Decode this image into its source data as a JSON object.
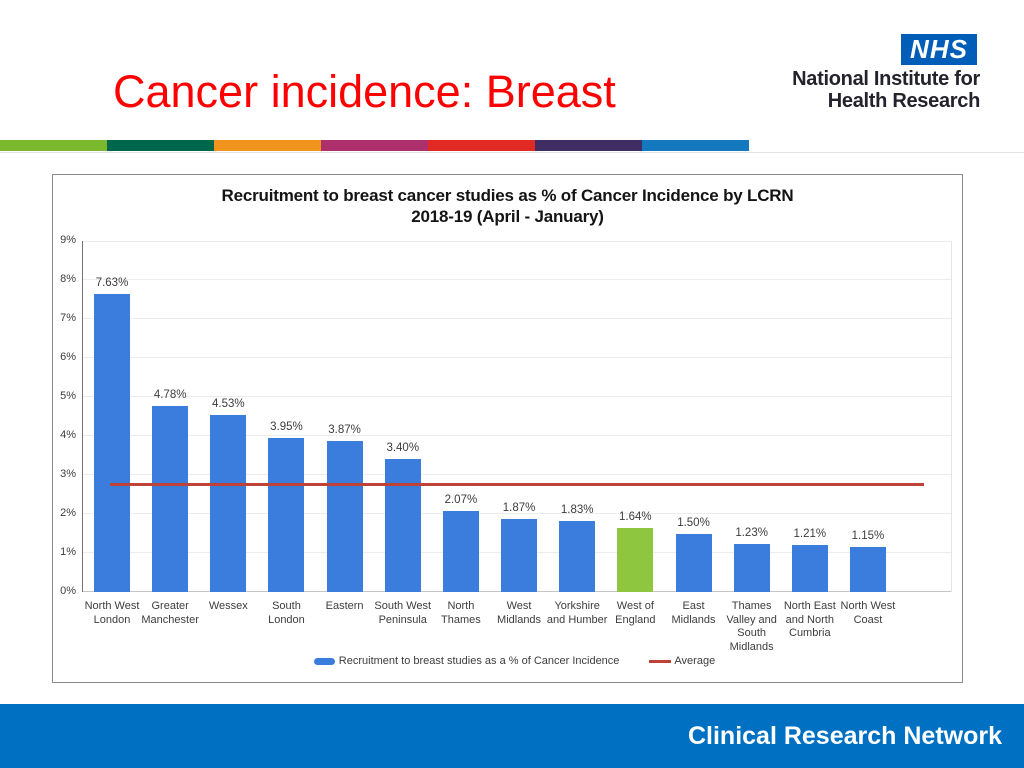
{
  "slide": {
    "title": "Cancer incidence: Breast",
    "title_color": "#fe0000"
  },
  "nhs_logo": {
    "nhs": "NHS",
    "org_line1": "National Institute for",
    "org_line2": "Health Research",
    "nhs_blue": "#005eb8"
  },
  "stripe_colors": [
    "#7cb82e",
    "#00664c",
    "#f0941e",
    "#ad2f6c",
    "#e22a25",
    "#3f2d64",
    "#1478bf"
  ],
  "footer": {
    "label": "Clinical Research Network",
    "bg": "#0071c2"
  },
  "chart_data": {
    "type": "bar",
    "title_line1": "Recruitment to breast cancer studies as % of Cancer Incidence by LCRN",
    "title_line2": "2018-19 (April - January)",
    "categories": [
      "North West London",
      "Greater Manchester",
      "Wessex",
      "South London",
      "Eastern",
      "South West Peninsula",
      "North Thames",
      "West Midlands",
      "Yorkshire and Humber",
      "West of England",
      "East Midlands",
      "Thames Valley and South Midlands",
      "North East and North Cumbria",
      "North West Coast"
    ],
    "categories_wrapped": [
      "North West\nLondon",
      "Greater\nManchester",
      "Wessex",
      "South\nLondon",
      "Eastern",
      "South West\nPeninsula",
      "North\nThames",
      "West\nMidlands",
      "Yorkshire\nand Humber",
      "West of\nEngland",
      "East\nMidlands",
      "Thames\nValley and\nSouth\nMidlands",
      "North East\nand North\nCumbria",
      "North West\nCoast"
    ],
    "values": [
      7.63,
      4.78,
      4.53,
      3.95,
      3.87,
      3.4,
      2.07,
      1.87,
      1.83,
      1.64,
      1.5,
      1.23,
      1.21,
      1.15
    ],
    "value_labels": [
      "7.63%",
      "4.78%",
      "4.53%",
      "3.95%",
      "3.87%",
      "3.40%",
      "2.07%",
      "1.87%",
      "1.83%",
      "1.64%",
      "1.50%",
      "1.23%",
      "1.21%",
      "1.15%"
    ],
    "average": 2.77,
    "ylim": [
      0,
      9
    ],
    "ytick_labels": [
      "0%",
      "1%",
      "2%",
      "3%",
      "4%",
      "5%",
      "6%",
      "7%",
      "8%",
      "9%"
    ],
    "grid": true,
    "legend_position": "bottom",
    "series_color": "#3b7ddc",
    "highlight_index": 9,
    "highlight_color": "#8ec63f",
    "average_color": "#bf4238",
    "legend": [
      {
        "label": "Recruitment to breast studies as a % of Cancer Incidence",
        "color": "#3b7ddc",
        "type": "bar"
      },
      {
        "label": "Average",
        "color": "#bf4238",
        "type": "line"
      }
    ]
  }
}
